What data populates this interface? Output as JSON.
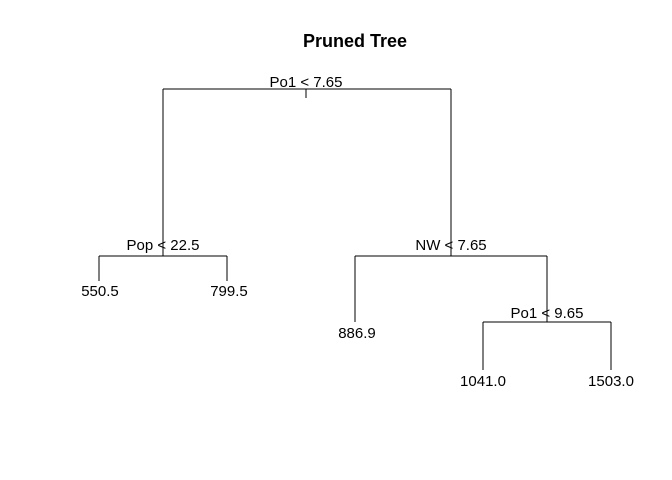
{
  "title": "Pruned Tree",
  "tree": {
    "root": {
      "split": "Po1 < 7.65"
    },
    "left_node": {
      "split": "Pop < 22.5"
    },
    "right_node": {
      "split": "NW < 7.65"
    },
    "right_right_node": {
      "split": "Po1 < 9.65"
    },
    "leaves": {
      "left_left": "550.5",
      "left_right": "799.5",
      "right_left": "886.9",
      "right_right_left": "1041.0",
      "right_right_right": "1503.0"
    }
  }
}
